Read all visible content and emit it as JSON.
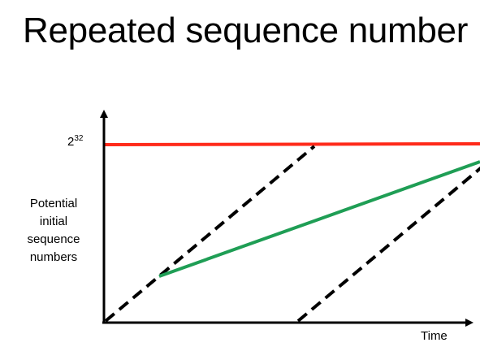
{
  "slide": {
    "title": "Repeated sequence number"
  },
  "diagram": {
    "y_max_label_base": "2",
    "y_max_label_exp": "32",
    "y_axis_label_lines": [
      "Potential",
      "initial",
      "sequence",
      "numbers"
    ],
    "x_axis_label": "Time",
    "colors": {
      "axis": "#000000",
      "max_line": "#ff2a1a",
      "isn_clock": "#1f9e55",
      "dashed_range": "#000000"
    }
  }
}
